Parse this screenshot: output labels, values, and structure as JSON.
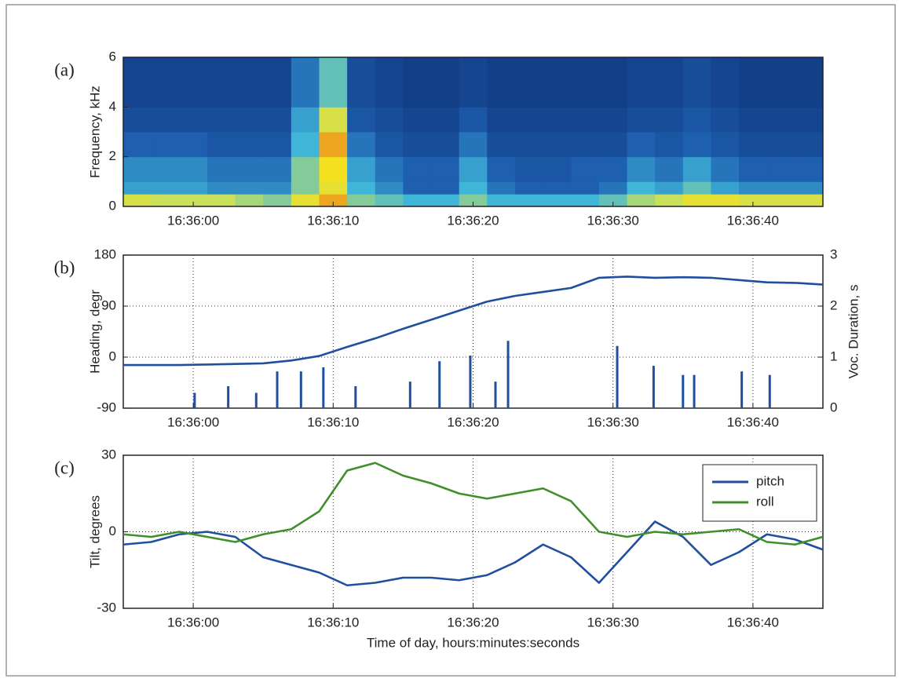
{
  "chart_data": [
    {
      "type": "heatmap",
      "panel_label": "(a)",
      "ylabel": "Frequency, kHz",
      "colormap": "jet",
      "grid": false,
      "x_bins": [
        59755,
        59757,
        59759,
        59761,
        59763,
        59765,
        59767,
        59769,
        59771,
        59773,
        59775,
        59777,
        59779,
        59781,
        59783,
        59785,
        59787,
        59789,
        59791,
        59793,
        59795,
        59797,
        59799,
        59801,
        59803,
        59805
      ],
      "y_bins": [
        0,
        0.5,
        1,
        2,
        3,
        4,
        6
      ],
      "z": [
        [
          0.75,
          0.7,
          0.7,
          0.7,
          0.65,
          0.6,
          0.8,
          0.9,
          0.6,
          0.55,
          0.5,
          0.5,
          0.6,
          0.5,
          0.5,
          0.5,
          0.5,
          0.55,
          0.65,
          0.7,
          0.8,
          0.8,
          0.75,
          0.75,
          0.75
        ],
        [
          0.45,
          0.45,
          0.45,
          0.4,
          0.4,
          0.4,
          0.6,
          0.8,
          0.5,
          0.4,
          0.3,
          0.3,
          0.5,
          0.35,
          0.3,
          0.3,
          0.3,
          0.35,
          0.5,
          0.45,
          0.55,
          0.45,
          0.4,
          0.4,
          0.4
        ],
        [
          0.4,
          0.4,
          0.4,
          0.35,
          0.35,
          0.35,
          0.6,
          0.85,
          0.45,
          0.35,
          0.3,
          0.3,
          0.45,
          0.3,
          0.25,
          0.25,
          0.3,
          0.3,
          0.4,
          0.35,
          0.45,
          0.35,
          0.3,
          0.3,
          0.3
        ],
        [
          0.3,
          0.3,
          0.3,
          0.25,
          0.25,
          0.25,
          0.5,
          0.9,
          0.35,
          0.25,
          0.2,
          0.2,
          0.35,
          0.2,
          0.2,
          0.2,
          0.2,
          0.2,
          0.3,
          0.25,
          0.3,
          0.25,
          0.2,
          0.2,
          0.2
        ],
        [
          0.2,
          0.2,
          0.2,
          0.2,
          0.2,
          0.2,
          0.45,
          0.75,
          0.25,
          0.2,
          0.15,
          0.15,
          0.25,
          0.15,
          0.15,
          0.15,
          0.15,
          0.15,
          0.2,
          0.2,
          0.25,
          0.2,
          0.15,
          0.15,
          0.15
        ],
        [
          0.15,
          0.15,
          0.15,
          0.15,
          0.15,
          0.15,
          0.35,
          0.55,
          0.2,
          0.15,
          0.12,
          0.12,
          0.15,
          0.12,
          0.12,
          0.12,
          0.12,
          0.12,
          0.15,
          0.15,
          0.2,
          0.15,
          0.12,
          0.12,
          0.12
        ]
      ],
      "xlim": [
        59755,
        59805
      ],
      "ylim": [
        0,
        6
      ],
      "yticks": [
        0,
        2,
        4,
        6
      ],
      "xticks": [
        {
          "value": 59760,
          "label": "16:36:00"
        },
        {
          "value": 59770,
          "label": "16:36:10"
        },
        {
          "value": 59780,
          "label": "16:36:20"
        },
        {
          "value": 59790,
          "label": "16:36:30"
        },
        {
          "value": 59800,
          "label": "16:36:40"
        }
      ]
    },
    {
      "type": "line",
      "panel_label": "(b)",
      "ylabel": "Heading, degr",
      "y2label": "Voc. Duration, s",
      "grid": true,
      "xlim": [
        59755,
        59805
      ],
      "ylim": [
        -90,
        180
      ],
      "yticks": [
        -90,
        0,
        90,
        180
      ],
      "y2lim": [
        0,
        3
      ],
      "y2ticks": [
        0,
        1,
        2,
        3
      ],
      "xticks": [
        {
          "value": 59760,
          "label": "16:36:00"
        },
        {
          "value": 59770,
          "label": "16:36:10"
        },
        {
          "value": 59780,
          "label": "16:36:20"
        },
        {
          "value": 59790,
          "label": "16:36:30"
        },
        {
          "value": 59800,
          "label": "16:36:40"
        }
      ],
      "series": [
        {
          "color": "#1f4f9e",
          "x": [
            59755,
            59757,
            59759,
            59761,
            59763,
            59765,
            59767,
            59769,
            59771,
            59773,
            59775,
            59777,
            59779,
            59781,
            59783,
            59785,
            59787,
            59789,
            59791,
            59793,
            59795,
            59797,
            59799,
            59801,
            59803,
            59805
          ],
          "values": [
            -14,
            -14,
            -14,
            -13,
            -12,
            -11,
            -6,
            2,
            18,
            33,
            50,
            66,
            82,
            98,
            108,
            115,
            122,
            140,
            142,
            140,
            141,
            140,
            136,
            132,
            131,
            128
          ]
        },
        {
          "color": "#1f4f9e",
          "axis": "y2",
          "style": "stem",
          "x": [
            59760.1,
            59762.5,
            59764.5,
            59766,
            59767.7,
            59769.3,
            59771.6,
            59775.5,
            59777.6,
            59779.8,
            59781.6,
            59782.5,
            59790.3,
            59792.9,
            59795,
            59795.8,
            59799.2,
            59801.2
          ],
          "values": [
            0.3,
            0.43,
            0.3,
            0.72,
            0.72,
            0.8,
            0.43,
            0.52,
            0.92,
            1.03,
            0.52,
            1.32,
            1.22,
            0.83,
            0.65,
            0.65,
            0.72,
            0.65
          ]
        }
      ]
    },
    {
      "type": "line",
      "panel_label": "(c)",
      "ylabel": "Tilt, degrees",
      "xlabel": "Time of day, hours:minutes:seconds",
      "grid": true,
      "legend": "upper right",
      "xlim": [
        59755,
        59805
      ],
      "ylim": [
        -30,
        30
      ],
      "yticks": [
        -30,
        0,
        30
      ],
      "xticks": [
        {
          "value": 59760,
          "label": "16:36:00"
        },
        {
          "value": 59770,
          "label": "16:36:10"
        },
        {
          "value": 59780,
          "label": "16:36:20"
        },
        {
          "value": 59790,
          "label": "16:36:30"
        },
        {
          "value": 59800,
          "label": "16:36:40"
        }
      ],
      "x": [
        59755,
        59757,
        59759,
        59761,
        59763,
        59765,
        59767,
        59769,
        59771,
        59773,
        59775,
        59777,
        59779,
        59781,
        59783,
        59785,
        59787,
        59789,
        59791,
        59793,
        59795,
        59797,
        59799,
        59801,
        59803,
        59805
      ],
      "series": [
        {
          "name": "pitch",
          "color": "#1f4f9e",
          "values": [
            -5,
            -4,
            -1,
            0,
            -2,
            -10,
            -13,
            -16,
            -21,
            -20,
            -18,
            -18,
            -19,
            -17,
            -12,
            -5,
            -10,
            -20,
            -8,
            4,
            -2,
            -13,
            -8,
            -1,
            -3,
            -7
          ]
        },
        {
          "name": "roll",
          "color": "#3f8f2a",
          "values": [
            -1,
            -2,
            0,
            -2,
            -4,
            -1,
            1,
            8,
            24,
            27,
            22,
            19,
            15,
            13,
            15,
            17,
            12,
            0,
            -2,
            0,
            -1,
            0,
            1,
            -4,
            -5,
            -2
          ]
        }
      ]
    }
  ]
}
